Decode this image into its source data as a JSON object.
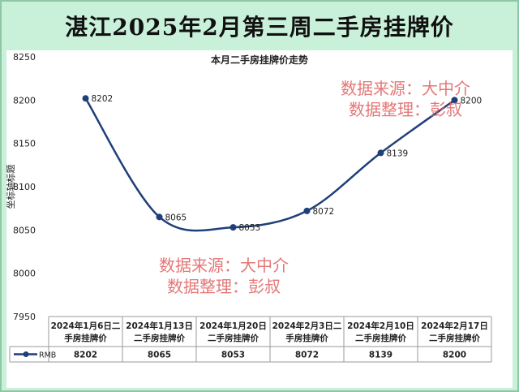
{
  "banner_title": "湛江2025年2月第三周二手房挂牌价",
  "chart_data": {
    "type": "line",
    "title": "本月二手房挂牌价走势",
    "ylabel": "坐标轴标题",
    "ylim": [
      7950,
      8250
    ],
    "yticks": [
      7950,
      8000,
      8050,
      8100,
      8150,
      8200,
      8250
    ],
    "categories": [
      [
        "2024年1月6日二",
        "手房挂牌价"
      ],
      [
        "2024年1月13日",
        "二手房挂牌价"
      ],
      [
        "2024年1月20日",
        "二手房挂牌价"
      ],
      [
        "2024年2月3日二",
        "手房挂牌价"
      ],
      [
        "2024年2月10日",
        "二手房挂牌价"
      ],
      [
        "2024年2月17日",
        "二手房挂牌价"
      ]
    ],
    "series": [
      {
        "name": "RMB",
        "values": [
          8202,
          8065,
          8053,
          8072,
          8139,
          8200
        ],
        "color": "#1f3f7a"
      }
    ],
    "smooth": true,
    "grid": false,
    "data_table": true
  },
  "watermark": {
    "line1": "数据来源：大中介",
    "line2": "数据整理：彭叔",
    "color": "#e06060"
  }
}
